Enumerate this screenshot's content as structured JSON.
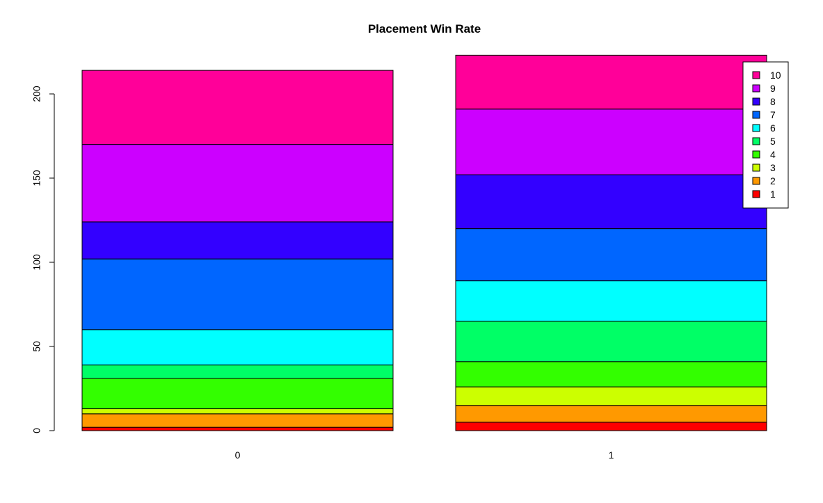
{
  "chart_data": {
    "type": "bar",
    "stacked": true,
    "title": "Placement Win Rate",
    "xlabel": "",
    "ylabel": "",
    "categories": [
      "0",
      "1"
    ],
    "ylim": [
      0,
      225
    ],
    "yticks": [
      "0",
      "50",
      "100",
      "150",
      "200"
    ],
    "grid": false,
    "legend": {
      "placement": "top-right",
      "order": [
        "10",
        "9",
        "8",
        "7",
        "6",
        "5",
        "4",
        "3",
        "2",
        "1"
      ]
    },
    "series": [
      {
        "name": "1",
        "color": "#FF0000",
        "values": [
          2,
          5
        ]
      },
      {
        "name": "2",
        "color": "#FF9900",
        "values": [
          8,
          10
        ]
      },
      {
        "name": "3",
        "color": "#CCFF00",
        "values": [
          3,
          11
        ]
      },
      {
        "name": "4",
        "color": "#33FF00",
        "values": [
          18,
          15
        ]
      },
      {
        "name": "5",
        "color": "#00FF66",
        "values": [
          8,
          24
        ]
      },
      {
        "name": "6",
        "color": "#00FFFF",
        "values": [
          21,
          24
        ]
      },
      {
        "name": "7",
        "color": "#0066FF",
        "values": [
          42,
          31
        ]
      },
      {
        "name": "8",
        "color": "#3300FF",
        "values": [
          22,
          32
        ]
      },
      {
        "name": "9",
        "color": "#CC00FF",
        "values": [
          46,
          39
        ]
      },
      {
        "name": "10",
        "color": "#FF0099",
        "values": [
          44,
          32
        ]
      }
    ]
  }
}
